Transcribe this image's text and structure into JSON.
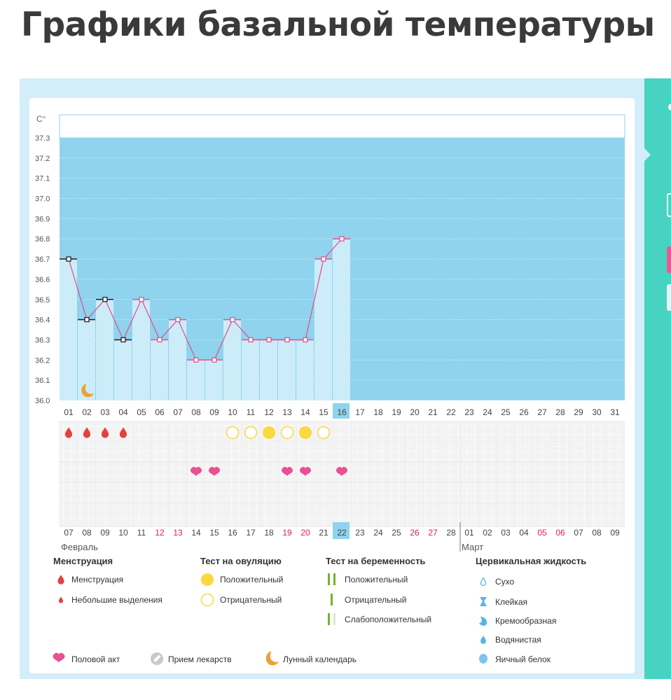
{
  "page": {
    "title": "Графики базальной температуры"
  },
  "chart_data": {
    "type": "line",
    "y_unit": "C°",
    "y_ticks": [
      "37.3",
      "37.2",
      "37.1",
      "37.0",
      "36.9",
      "36.8",
      "36.7",
      "36.6",
      "36.5",
      "36.4",
      "36.3",
      "36.2",
      "36.1",
      "36.0"
    ],
    "ylim": [
      36.0,
      37.3
    ],
    "cycle_days": [
      "01",
      "02",
      "03",
      "04",
      "05",
      "06",
      "07",
      "08",
      "09",
      "10",
      "11",
      "12",
      "13",
      "14",
      "15",
      "16",
      "17",
      "18",
      "19",
      "20",
      "21",
      "22",
      "23",
      "24",
      "25",
      "26",
      "27",
      "28",
      "29",
      "30",
      "31"
    ],
    "current_day_index": 15,
    "temperatures": [
      36.7,
      36.4,
      36.5,
      36.3,
      36.5,
      36.3,
      36.4,
      36.2,
      36.2,
      36.4,
      36.3,
      36.3,
      36.3,
      36.3,
      36.7,
      36.8
    ],
    "point_colors": [
      "black",
      "black",
      "black",
      "black",
      "pink",
      "pink",
      "pink",
      "pink",
      "pink",
      "pink",
      "pink",
      "pink",
      "pink",
      "pink",
      "pink",
      "pink"
    ],
    "dates": [
      "07",
      "08",
      "09",
      "10",
      "11",
      "12",
      "13",
      "14",
      "15",
      "16",
      "17",
      "18",
      "19",
      "20",
      "21",
      "22",
      "23",
      "24",
      "25",
      "26",
      "27",
      "28",
      "01",
      "02",
      "03",
      "04",
      "05",
      "06",
      "07",
      "08",
      "09"
    ],
    "date_red": [
      false,
      false,
      false,
      false,
      false,
      true,
      true,
      false,
      false,
      false,
      false,
      false,
      true,
      true,
      false,
      false,
      false,
      false,
      false,
      true,
      true,
      false,
      false,
      false,
      false,
      false,
      true,
      true,
      false,
      false,
      false
    ],
    "month_labels": [
      {
        "label": "Февраль",
        "start_index": 0
      },
      {
        "label": "Март",
        "start_index": 22
      }
    ],
    "menstruation_days": [
      0,
      1,
      2,
      3
    ],
    "ovulation_tests": [
      {
        "day": 9,
        "result": "negative"
      },
      {
        "day": 10,
        "result": "negative"
      },
      {
        "day": 11,
        "result": "positive"
      },
      {
        "day": 12,
        "result": "negative"
      },
      {
        "day": 13,
        "result": "positive"
      },
      {
        "day": 14,
        "result": "negative"
      }
    ],
    "intercourse_days": [
      7,
      8,
      12,
      13,
      15
    ],
    "moon_days": [
      1
    ]
  },
  "colors": {
    "plot_bg": "#8fd3ee",
    "bar": "#ccecfa",
    "line": "#e2558d",
    "heart": "#ea4f93",
    "drop": "#e3413f",
    "sun": "#fad83f",
    "moon": "#eea13a",
    "stick": "#6fb52c",
    "highlight": "#8fd3ee",
    "red_date": "#d6235f"
  },
  "legend": {
    "menstruation": {
      "title": "Менструация",
      "items": [
        "Менструация",
        "Небольшие выделения"
      ]
    },
    "ovulation_test": {
      "title": "Тест на овуляцию",
      "items": [
        "Положительный",
        "Отрицательный"
      ]
    },
    "pregnancy_test": {
      "title": "Тест на беременность",
      "items": [
        "Положительный",
        "Отрицательный",
        "Слабоположительный"
      ]
    },
    "cervical": {
      "title": "Цервикальная жидкость",
      "items": [
        "Сухо",
        "Клейкая",
        "Кремообразная",
        "Водянистая",
        "Яичный белок"
      ]
    },
    "footer": [
      "Половой акт",
      "Прием лекарств",
      "Лунный календарь"
    ]
  }
}
